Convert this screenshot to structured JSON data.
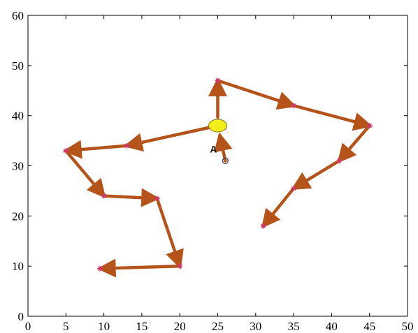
{
  "chart_data": {
    "type": "scatter",
    "title": "",
    "xlabel": "",
    "ylabel": "",
    "xlim": [
      0,
      50
    ],
    "ylim": [
      0,
      60
    ],
    "xticks": [
      0,
      5,
      10,
      15,
      20,
      25,
      30,
      35,
      40,
      45,
      50
    ],
    "yticks": [
      0,
      10,
      20,
      30,
      40,
      50,
      60
    ],
    "grid": false,
    "colors": {
      "path": "#b4531a",
      "point_marker": "#d6336c",
      "hub_fill": "#f2ee1c",
      "hub_stroke": "#8a6d10",
      "start_marker": "#555555"
    },
    "start_point": {
      "label": "A",
      "x": 26,
      "y": 31
    },
    "hub": {
      "x": 25,
      "y": 38
    },
    "points": [
      {
        "x": 25,
        "y": 47
      },
      {
        "x": 35,
        "y": 42
      },
      {
        "x": 45,
        "y": 38
      },
      {
        "x": 41,
        "y": 31
      },
      {
        "x": 35,
        "y": 25.5
      },
      {
        "x": 31,
        "y": 18
      },
      {
        "x": 13,
        "y": 34
      },
      {
        "x": 5,
        "y": 33
      },
      {
        "x": 10,
        "y": 24
      },
      {
        "x": 17,
        "y": 23.5
      },
      {
        "x": 20,
        "y": 10
      },
      {
        "x": 9.5,
        "y": 9.5
      }
    ],
    "path_segments": [
      {
        "from": [
          26,
          31
        ],
        "to": [
          25,
          38
        ]
      },
      {
        "from": [
          25,
          38
        ],
        "to": [
          25,
          47
        ]
      },
      {
        "from": [
          25,
          47
        ],
        "to": [
          35,
          42
        ]
      },
      {
        "from": [
          35,
          42
        ],
        "to": [
          45,
          38
        ]
      },
      {
        "from": [
          45,
          38
        ],
        "to": [
          41,
          31
        ]
      },
      {
        "from": [
          41,
          31
        ],
        "to": [
          35,
          25.5
        ]
      },
      {
        "from": [
          35,
          25.5
        ],
        "to": [
          31,
          18
        ]
      },
      {
        "from": [
          25,
          38
        ],
        "to": [
          13,
          34
        ]
      },
      {
        "from": [
          13,
          34
        ],
        "to": [
          5,
          33
        ]
      },
      {
        "from": [
          5,
          33
        ],
        "to": [
          10,
          24
        ]
      },
      {
        "from": [
          10,
          24
        ],
        "to": [
          17,
          23.5
        ]
      },
      {
        "from": [
          17,
          23.5
        ],
        "to": [
          20,
          10
        ]
      },
      {
        "from": [
          20,
          10
        ],
        "to": [
          9.5,
          9.5
        ]
      }
    ],
    "arrow_segments": [
      1,
      2,
      3,
      4,
      5,
      6,
      7,
      8,
      9,
      10,
      11,
      12,
      13
    ]
  }
}
